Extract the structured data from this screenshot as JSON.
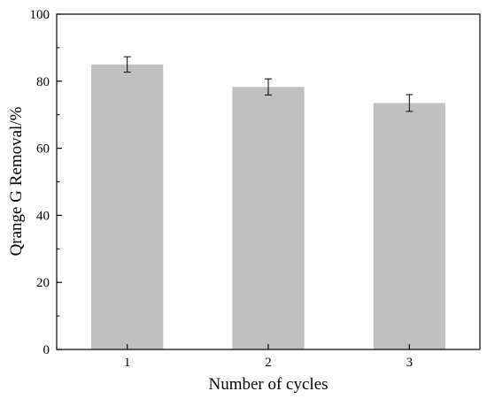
{
  "chart_data": {
    "type": "bar",
    "title": "",
    "xlabel": "Number of cycles",
    "ylabel": "Qrange G Removal/%",
    "categories": [
      "1",
      "2",
      "3"
    ],
    "values": [
      85.0,
      78.3,
      73.5
    ],
    "errors": [
      2.3,
      2.4,
      2.5
    ],
    "ylim": [
      0,
      100
    ],
    "yticks": [
      0,
      20,
      40,
      60,
      80,
      100
    ],
    "bar_color": "#c0c0c0",
    "grid": false,
    "legend": "none"
  }
}
